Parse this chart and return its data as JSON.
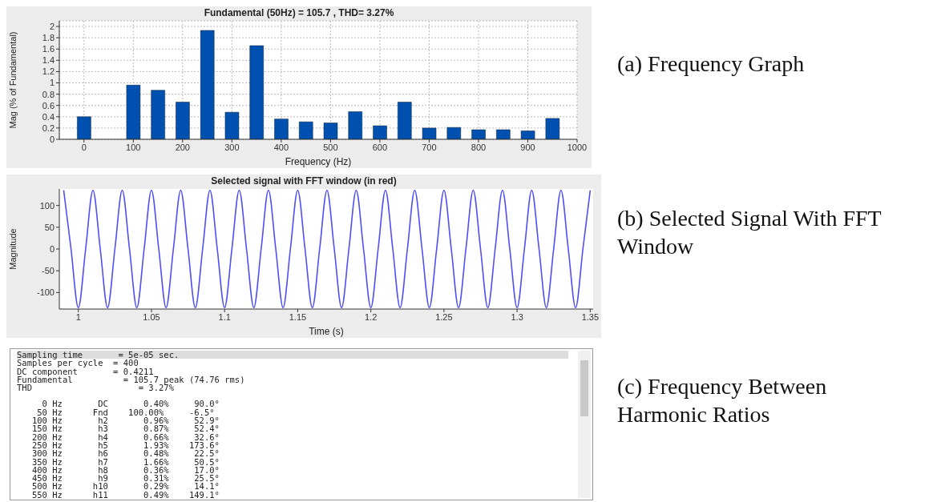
{
  "chart_data": [
    {
      "type": "bar",
      "title": "Fundamental (50Hz) = 105.7 , THD= 3.27%",
      "xlabel": "Frequency (Hz)",
      "ylabel": "Mag (% of Fundamental)",
      "x": [
        0,
        50,
        100,
        150,
        200,
        250,
        300,
        350,
        400,
        450,
        500,
        550,
        600,
        650,
        700,
        750,
        800,
        850,
        900,
        950
      ],
      "values": [
        0.4,
        null,
        0.96,
        0.87,
        0.66,
        1.93,
        0.48,
        1.66,
        0.36,
        0.31,
        0.29,
        0.49,
        0.24,
        0.66,
        0.2,
        0.21,
        0.17,
        0.17,
        0.15,
        0.37
      ],
      "color": "#0050b0",
      "xlim": [
        -50,
        1000
      ],
      "xticks": [
        0,
        100,
        200,
        300,
        400,
        500,
        600,
        700,
        800,
        900,
        1000
      ],
      "ylim": [
        0,
        2.1
      ],
      "yticks": [
        0,
        0.2,
        0.4,
        0.6,
        0.8,
        1,
        1.2,
        1.4,
        1.6,
        1.8,
        2
      ],
      "grid": true,
      "annotations": [
        "(a) Frequency Graph"
      ]
    },
    {
      "type": "line",
      "title": "Selected signal with FFT window (in red)",
      "xlabel": "Time (s)",
      "ylabel": "Magnitude",
      "x": [
        0.99,
        0.995,
        1,
        1.005,
        1.01,
        1.015,
        1.02,
        1.025,
        1.03,
        1.035,
        1.04,
        1.045,
        1.05,
        1.055,
        1.06,
        1.065,
        1.07,
        1.075,
        1.08,
        1.085,
        1.09,
        1.095,
        1.1,
        1.105,
        1.11,
        1.115,
        1.12,
        1.125,
        1.13,
        1.135,
        1.14,
        1.145,
        1.15,
        1.155,
        1.16,
        1.165,
        1.17,
        1.175,
        1.18,
        1.185,
        1.19,
        1.195,
        1.2,
        1.205,
        1.21,
        1.215,
        1.22,
        1.225,
        1.23,
        1.235,
        1.24,
        1.245,
        1.25,
        1.255,
        1.26,
        1.265,
        1.27,
        1.275,
        1.28,
        1.285,
        1.29,
        1.295,
        1.3,
        1.305,
        1.31,
        1.315,
        1.32,
        1.325,
        1.33,
        1.335,
        1.34,
        1.345,
        1.35
      ],
      "values": [
        135,
        0,
        -135,
        0,
        135,
        0,
        -135,
        0,
        135,
        0,
        -135,
        0,
        135,
        0,
        -135,
        0,
        135,
        0,
        -135,
        0,
        135,
        0,
        -135,
        0,
        135,
        0,
        -135,
        0,
        135,
        0,
        -135,
        0,
        135,
        0,
        -135,
        0,
        135,
        0,
        -135,
        0,
        135,
        0,
        -135,
        0,
        135,
        0,
        -135,
        0,
        135,
        0,
        -135,
        0,
        135,
        0,
        -135,
        0,
        135,
        0,
        -135,
        0,
        135,
        0,
        -135,
        0,
        135,
        0,
        -135,
        0,
        135,
        0,
        -135,
        0,
        135
      ],
      "color": "#4f4ff5",
      "xlim": [
        0.987,
        1.352
      ],
      "xticks": [
        1,
        1.05,
        1.1,
        1.15,
        1.2,
        1.25,
        1.3,
        1.35
      ],
      "ylim": [
        -138,
        138
      ],
      "yticks": [
        -100,
        -50,
        0,
        50,
        100
      ],
      "annotations": [
        "(b) Selected Signal With FFT Window"
      ]
    },
    {
      "type": "other",
      "annotations": [
        "Sampling time       = 5e-05 sec.",
        "Samples per cycle  = 400",
        "DC component       = 0.4211",
        "Fundamental          = 105.7 peak (74.76 rms)",
        "THD                     = 3.27%",
        "     0 Hz       DC       0.40%     90.0°",
        "    50 Hz      Fnd    100.00%     -6.5°",
        "   100 Hz       h2       0.96%     52.9°",
        "   150 Hz       h3       0.87%     52.4°",
        "   200 Hz       h4       0.66%     32.6°",
        "   250 Hz       h5       1.93%    173.6°",
        "   300 Hz       h6       0.48%     22.5°",
        "   350 Hz       h7       1.66%     50.5°",
        "   400 Hz       h8       0.36%     17.0°",
        "   450 Hz       h9       0.31%     25.5°",
        "   500 Hz      h10       0.29%     14.1°",
        "   550 Hz      h11       0.49%    149.1°",
        "(c) Frequency Between Harmonic Ratios"
      ]
    }
  ]
}
